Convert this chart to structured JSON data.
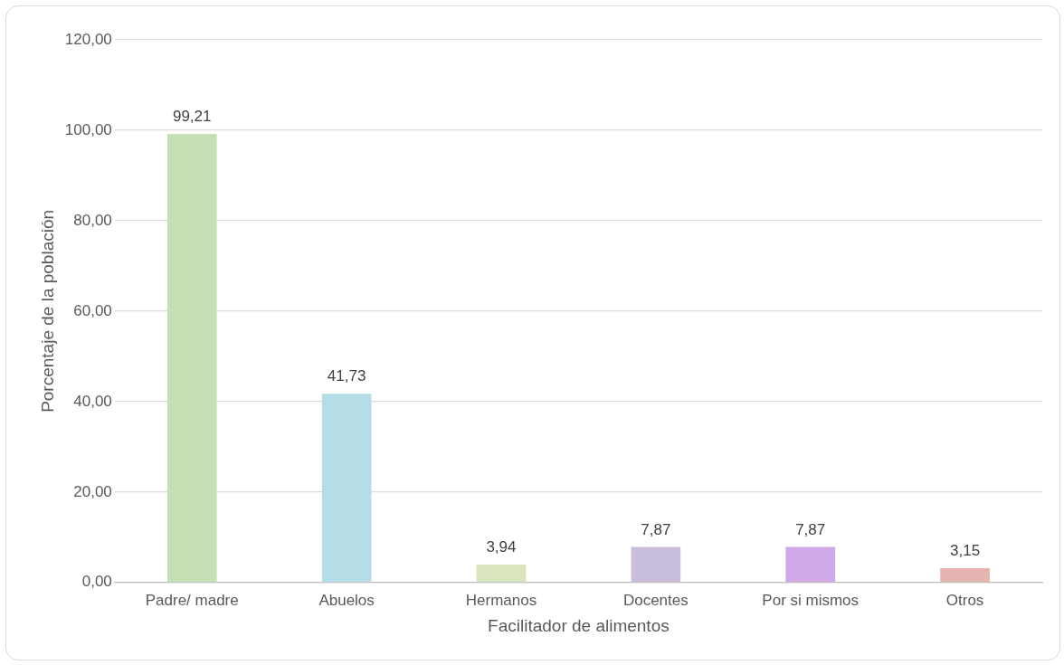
{
  "chart_data": {
    "type": "bar",
    "xlabel": "Facilitador de alimentos",
    "ylabel": "Porcentaje de la población",
    "categories": [
      "Padre/ madre",
      "Abuelos",
      "Hermanos",
      "Docentes",
      "Por si mismos",
      "Otros"
    ],
    "values": [
      99.21,
      41.73,
      3.94,
      7.87,
      7.87,
      3.15
    ],
    "colors": [
      "#c5e0b4",
      "#b4dde8",
      "#d9e5bc",
      "#c9bfdc",
      "#cfa8e8",
      "#e6b4b0"
    ],
    "value_labels": [
      "99,21",
      "41,73",
      "3,94",
      "7,87",
      "7,87",
      "3,15"
    ],
    "ylim": [
      0,
      120
    ],
    "yticks": [
      {
        "value": 0,
        "label": "0,00"
      },
      {
        "value": 20,
        "label": "20,00"
      },
      {
        "value": 40,
        "label": "40,00"
      },
      {
        "value": 60,
        "label": "60,00"
      },
      {
        "value": 80,
        "label": "80,00"
      },
      {
        "value": 100,
        "label": "100,00"
      },
      {
        "value": 120,
        "label": "120,00"
      }
    ],
    "grid": "y",
    "legend": false
  }
}
